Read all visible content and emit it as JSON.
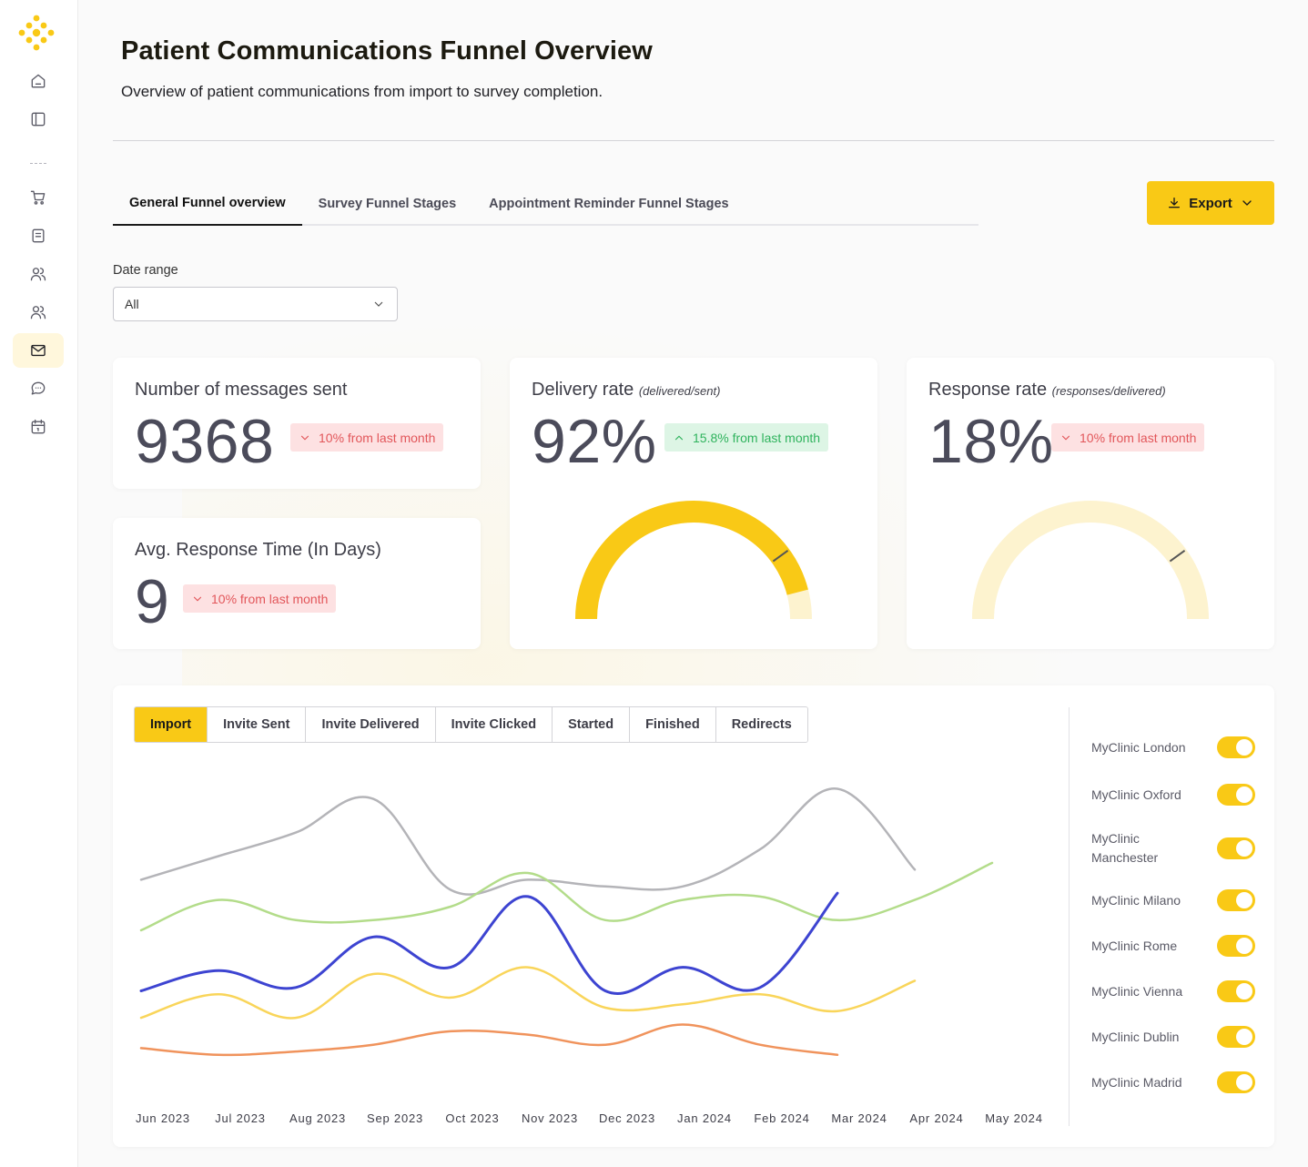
{
  "header": {
    "title": "Patient Communications Funnel Overview",
    "subtitle": "Overview of patient communications from import to survey completion."
  },
  "sidebar": {
    "items": [
      {
        "icon": "home-icon"
      },
      {
        "icon": "sidebar-panel-icon"
      },
      {
        "icon": "cart-icon"
      },
      {
        "icon": "document-icon"
      },
      {
        "icon": "users-icon"
      },
      {
        "icon": "team-icon"
      },
      {
        "icon": "mail-icon",
        "active": true
      },
      {
        "icon": "chat-icon"
      },
      {
        "icon": "calendar-icon"
      }
    ]
  },
  "tabs": [
    {
      "label": "General Funnel overview",
      "active": true
    },
    {
      "label": "Survey Funnel Stages"
    },
    {
      "label": "Appointment Reminder Funnel Stages"
    }
  ],
  "export": {
    "label": "Export"
  },
  "date_range": {
    "label": "Date range",
    "value": "All"
  },
  "cards": {
    "messages": {
      "title": "Number of messages sent",
      "value": "9368",
      "badge": "10% from last month"
    },
    "response_time": {
      "title": "Avg. Response Time (In Days)",
      "value": "9",
      "badge": "10% from last month"
    },
    "delivery": {
      "title": "Delivery rate",
      "subtitle": "(delivered/sent)",
      "value": "92%",
      "badge": "15.8% from last month",
      "gauge_fill": 0.92
    },
    "response": {
      "title": "Response rate",
      "subtitle": "(responses/delivered)",
      "value": "18%",
      "badge": "10% from last month",
      "gauge_fill": 0.18
    }
  },
  "chart_controls": [
    "Import",
    "Invite Sent",
    "Invite Delivered",
    "Invite Clicked",
    "Started",
    "Finished",
    "Redirects"
  ],
  "legend": [
    {
      "label": "MyClinic London",
      "on": true
    },
    {
      "label": "MyClinic Oxford",
      "on": true
    },
    {
      "label": "MyClinic Manchester",
      "on": true
    },
    {
      "label": "MyClinic Milano",
      "on": true
    },
    {
      "label": "MyClinic Rome",
      "on": true
    },
    {
      "label": "MyClinic Vienna",
      "on": true
    },
    {
      "label": "MyClinic Dublin",
      "on": true
    },
    {
      "label": "MyClinic Madrid",
      "on": true
    }
  ],
  "colors": {
    "accent": "#f9c916",
    "accent_light": "#fdf3cf",
    "neg": "#e2565a",
    "pos": "#2fb35d"
  },
  "chart_data": {
    "type": "line",
    "title": "",
    "xlabel": "",
    "ylabel": "",
    "categories": [
      "Jun 2023",
      "Jul 2023",
      "Aug 2023",
      "Sep 2023",
      "Oct 2023",
      "Nov 2023",
      "Dec 2023",
      "Jan 2024",
      "Feb 2024",
      "Mar 2024",
      "Apr 2024",
      "May 2024"
    ],
    "ylim": [
      0,
      100
    ],
    "grid": false,
    "series": [
      {
        "name": "gray",
        "color": "#b4b4b8",
        "values": [
          68,
          75,
          82,
          92,
          65,
          68,
          66,
          66,
          77,
          95,
          71,
          null
        ]
      },
      {
        "name": "green",
        "color": "#b3dc8a",
        "values": [
          53,
          62,
          56,
          56,
          60,
          70,
          56,
          62,
          63,
          56,
          62,
          73
        ]
      },
      {
        "name": "blue",
        "color": "#3d44d1",
        "values": [
          35,
          41,
          36,
          51,
          42,
          63,
          35,
          42,
          36,
          64,
          null,
          null
        ]
      },
      {
        "name": "yellow",
        "color": "#f9d55a",
        "values": [
          27,
          34,
          27,
          40,
          33,
          42,
          30,
          31,
          34,
          29,
          38,
          null
        ]
      },
      {
        "name": "orange",
        "color": "#f0935c",
        "values": [
          18,
          16,
          17,
          19,
          23,
          22,
          19,
          25,
          19,
          16,
          null,
          null
        ]
      }
    ]
  }
}
